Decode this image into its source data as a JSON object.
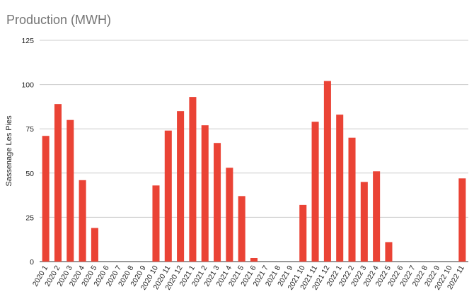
{
  "chart_data": {
    "type": "bar",
    "title": "Production (MWH)",
    "xlabel": "",
    "ylabel": "Sassenage Les Pies",
    "ylim": [
      0,
      125
    ],
    "yticks": [
      "0",
      "25",
      "50",
      "75",
      "100",
      "125"
    ],
    "grid": true,
    "color": "#ea4335",
    "categories": [
      "2020 1",
      "2020 2",
      "2020 3",
      "2020 4",
      "2020 5",
      "2020 6",
      "2020 7",
      "2020 8",
      "2020 9",
      "2020 10",
      "2020 11",
      "2020 12",
      "2021 1",
      "2021 2",
      "2021 3",
      "2021 4",
      "2021 5",
      "2021 6",
      "2021 7",
      "2021 8",
      "2021 9",
      "2021 10",
      "2021 11",
      "2021 12",
      "2022 1",
      "2022 2",
      "2022 3",
      "2022 4",
      "2022 5",
      "2022 6",
      "2022 7",
      "2022 8",
      "2022 9",
      "2022 10",
      "2022 11"
    ],
    "values": [
      71,
      89,
      80,
      46,
      19,
      0,
      0,
      0,
      0,
      43,
      74,
      85,
      93,
      77,
      67,
      53,
      37,
      2,
      0,
      0,
      0,
      32,
      79,
      102,
      83,
      70,
      45,
      51,
      11,
      0,
      0,
      0,
      0,
      0,
      47
    ]
  }
}
